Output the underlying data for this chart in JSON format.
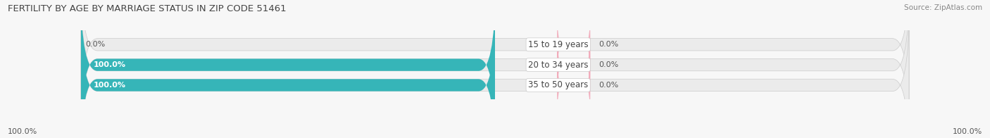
{
  "title": "FERTILITY BY AGE BY MARRIAGE STATUS IN ZIP CODE 51461",
  "source": "Source: ZipAtlas.com",
  "categories": [
    "15 to 19 years",
    "20 to 34 years",
    "35 to 50 years"
  ],
  "married_values": [
    0.0,
    100.0,
    100.0
  ],
  "unmarried_values": [
    0.0,
    0.0,
    0.0
  ],
  "married_color": "#36b5b8",
  "unmarried_color": "#f2a8b8",
  "bar_bg_color": "#ebebeb",
  "bar_height": 0.6,
  "title_fontsize": 9.5,
  "label_fontsize": 8,
  "cat_fontsize": 8.5,
  "tick_fontsize": 8,
  "source_fontsize": 7.5,
  "value_label_color": "#555555",
  "left_axis_label": "100.0%",
  "right_axis_label": "100.0%",
  "fig_bg_color": "#f7f7f7",
  "title_color": "#444444",
  "source_color": "#888888"
}
